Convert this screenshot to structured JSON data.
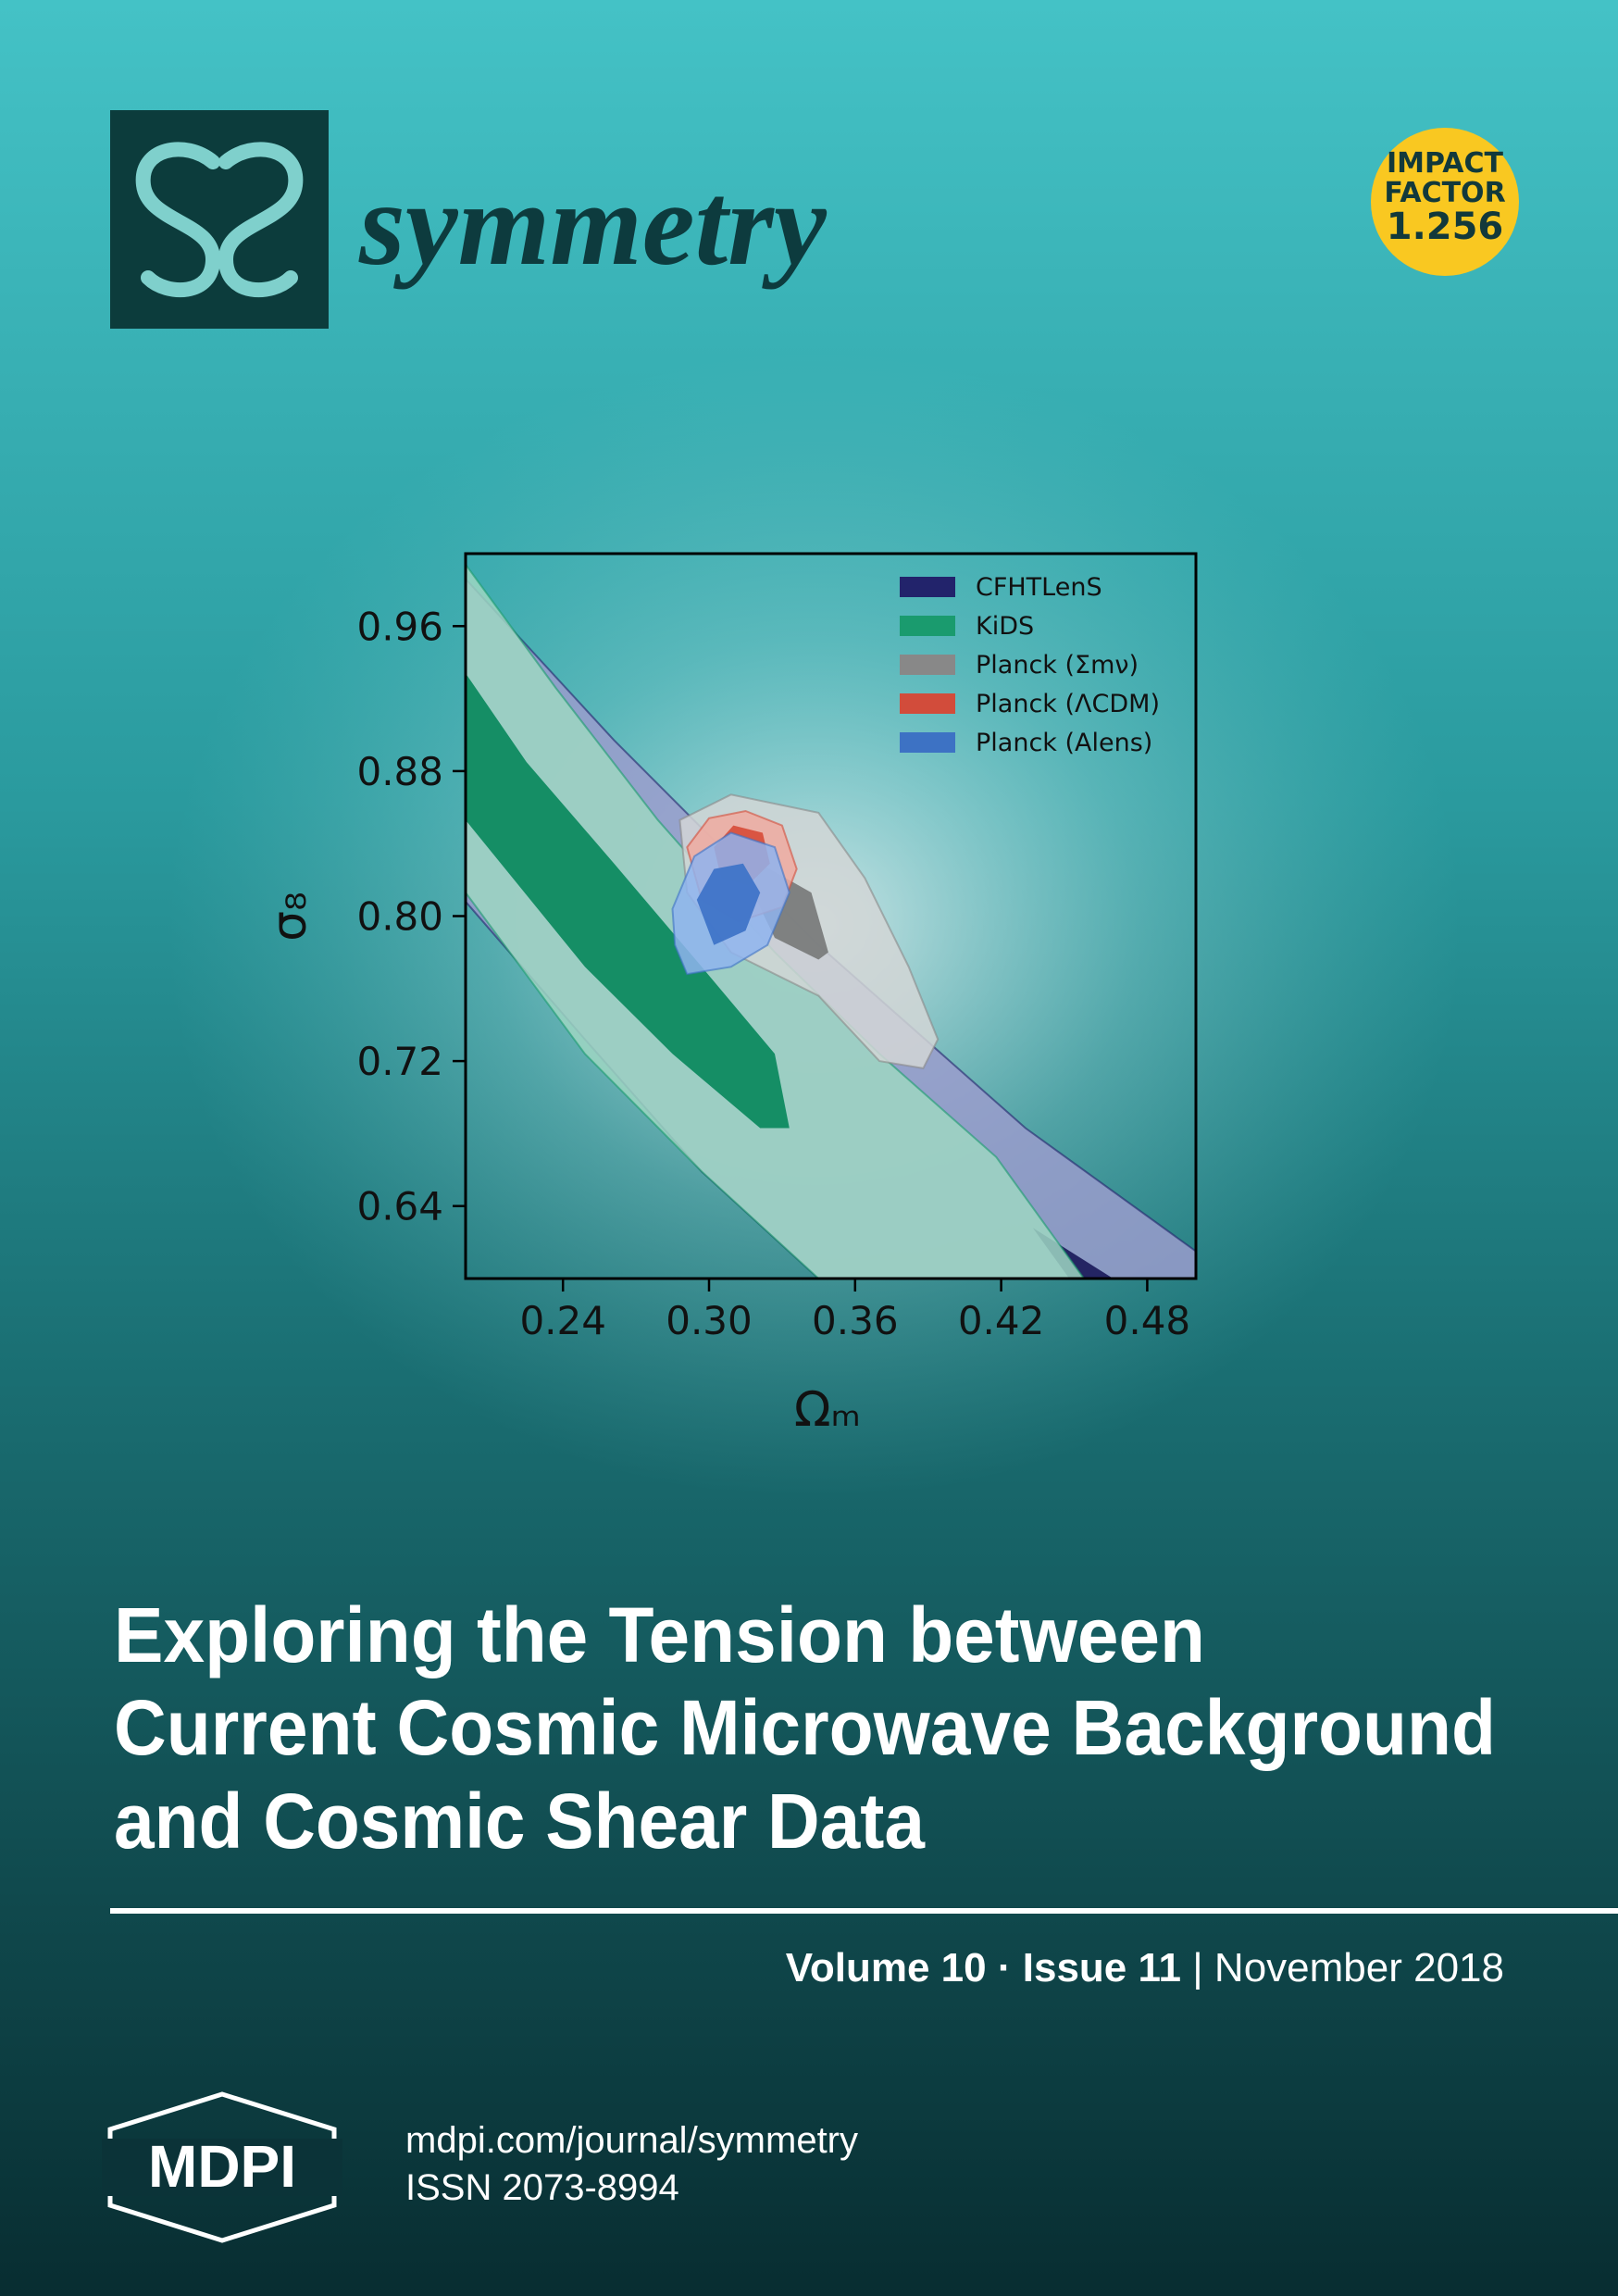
{
  "journal": {
    "name": "symmetry",
    "impact_factor_label": [
      "IMPACT",
      "FACTOR"
    ],
    "impact_factor": "1.256"
  },
  "chart_data": {
    "type": "contour",
    "xlabel": "Ωₘ",
    "ylabel": "σ₈",
    "xlim": [
      0.2,
      0.5
    ],
    "ylim": [
      0.6,
      1.0
    ],
    "xticks": [
      0.24,
      {
        "value": 0.3,
        "label": "0.30"
      },
      0.36,
      0.42,
      0.48
    ],
    "yticks": [
      0.64,
      0.72,
      {
        "value": 0.8,
        "label": "0.80"
      },
      0.88,
      0.96
    ],
    "legend": "upper right",
    "series": [
      {
        "name": "CFHTLenS",
        "color": "#22236b",
        "fills": [
          "#9a9ccc",
          "#1f1f5e"
        ],
        "contours": [
          {
            "x": [
              0.2,
              0.261,
              0.345,
              0.43,
              0.5,
              0.5,
              0.345,
              0.297,
              0.249,
              0.2
            ],
            "y": [
              0.986,
              0.897,
              0.784,
              0.683,
              0.615,
              0.6,
              0.6,
              0.659,
              0.732,
              0.808
            ]
          },
          {
            "x": [
              0.433,
              0.466,
              0.448
            ],
            "y": [
              0.628,
              0.6,
              0.6
            ]
          }
        ]
      },
      {
        "name": "KiDS",
        "color": "#1a9b6e",
        "fills": [
          "#9dd6c2",
          "#0e8a60"
        ],
        "contours": [
          {
            "x": [
              0.2,
              0.237,
              0.279,
              0.327,
              0.37,
              0.418,
              0.454,
              0.345,
              0.297,
              0.249,
              0.2
            ],
            "y": [
              0.994,
              0.926,
              0.853,
              0.78,
              0.724,
              0.667,
              0.6,
              0.6,
              0.659,
              0.724,
              0.813
            ]
          },
          {
            "x": [
              0.2,
              0.225,
              0.261,
              0.297,
              0.327,
              0.333,
              0.321,
              0.285,
              0.249,
              0.2
            ],
            "y": [
              0.934,
              0.885,
              0.829,
              0.772,
              0.724,
              0.683,
              0.683,
              0.724,
              0.772,
              0.853
            ]
          }
        ]
      },
      {
        "name": "Planck (Σmν)",
        "color": "#888888",
        "fills": [
          "#d2d6d6",
          "#7a7c7c"
        ],
        "contours": [
          {
            "x": [
              0.288,
              0.309,
              0.345,
              0.364,
              0.382,
              0.394,
              0.388,
              0.37,
              0.345,
              0.309,
              0.291
            ],
            "y": [
              0.853,
              0.867,
              0.857,
              0.821,
              0.772,
              0.732,
              0.716,
              0.72,
              0.756,
              0.78,
              0.813
            ]
          },
          {
            "x": [
              0.321,
              0.342,
              0.349,
              0.345,
              0.327,
              0.318
            ],
            "y": [
              0.829,
              0.813,
              0.78,
              0.776,
              0.788,
              0.813
            ]
          }
        ]
      },
      {
        "name": "Planck (ΛCDM)",
        "color": "#d24c3b",
        "fills": [
          "#f0aaa0",
          "#d8503c"
        ],
        "contours": [
          {
            "x": [
              0.291,
              0.3,
              0.315,
              0.33,
              0.336,
              0.33,
              0.312,
              0.297
            ],
            "y": [
              0.838,
              0.854,
              0.858,
              0.85,
              0.826,
              0.805,
              0.797,
              0.809
            ]
          },
          {
            "x": [
              0.302,
              0.31,
              0.322,
              0.325,
              0.316,
              0.305
            ],
            "y": [
              0.838,
              0.85,
              0.846,
              0.829,
              0.817,
              0.821
            ]
          }
        ]
      },
      {
        "name": "Planck (Alens)",
        "color": "#3d72c4",
        "fills": [
          "#8fb4ee",
          "#3f74c8"
        ],
        "contours": [
          {
            "x": [
              0.285,
              0.294,
              0.309,
              0.327,
              0.333,
              0.324,
              0.309,
              0.291,
              0.286
            ],
            "y": [
              0.804,
              0.833,
              0.846,
              0.838,
              0.813,
              0.784,
              0.772,
              0.768,
              0.784
            ]
          },
          {
            "x": [
              0.295,
              0.302,
              0.314,
              0.321,
              0.315,
              0.302
            ],
            "y": [
              0.809,
              0.826,
              0.829,
              0.813,
              0.792,
              0.784
            ]
          }
        ]
      }
    ]
  },
  "title": [
    "Exploring the Tension between",
    "Current Cosmic Microwave Background",
    "and Cosmic Shear Data"
  ],
  "issue": {
    "volume": "Volume 10",
    "dot": "·",
    "issue": "Issue 11",
    "bar": "|",
    "date": "November 2018"
  },
  "publisher": "MDPI",
  "url": "mdpi.com/journal/symmetry",
  "issn": "ISSN 2073-8994"
}
